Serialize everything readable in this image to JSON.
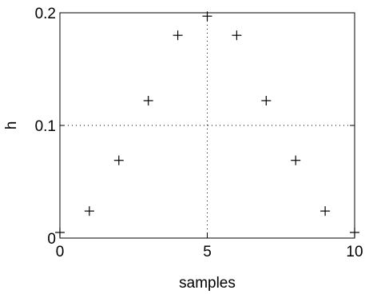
{
  "chart_data": {
    "type": "scatter",
    "marker": "plus",
    "title": "",
    "xlabel": "samples",
    "ylabel": "h",
    "xlim": [
      0,
      10
    ],
    "ylim": [
      0,
      0.2
    ],
    "xticks": [
      0,
      5,
      10
    ],
    "yticks": [
      0,
      0.1,
      0.2
    ],
    "xtick_labels": [
      "0",
      "5",
      "10"
    ],
    "ytick_labels": [
      "0",
      "0.1",
      "0.2"
    ],
    "grid": true,
    "grid_style": "dotted",
    "series": [
      {
        "x": [
          0,
          1,
          2,
          3,
          4,
          5,
          6,
          7,
          8,
          9,
          10
        ],
        "y": [
          0.005,
          0.024,
          0.069,
          0.122,
          0.18,
          0.197,
          0.18,
          0.122,
          0.069,
          0.024,
          0.005
        ]
      }
    ],
    "colors": {
      "axes": "#000000",
      "marker": "#000000",
      "background": "#ffffff"
    }
  }
}
